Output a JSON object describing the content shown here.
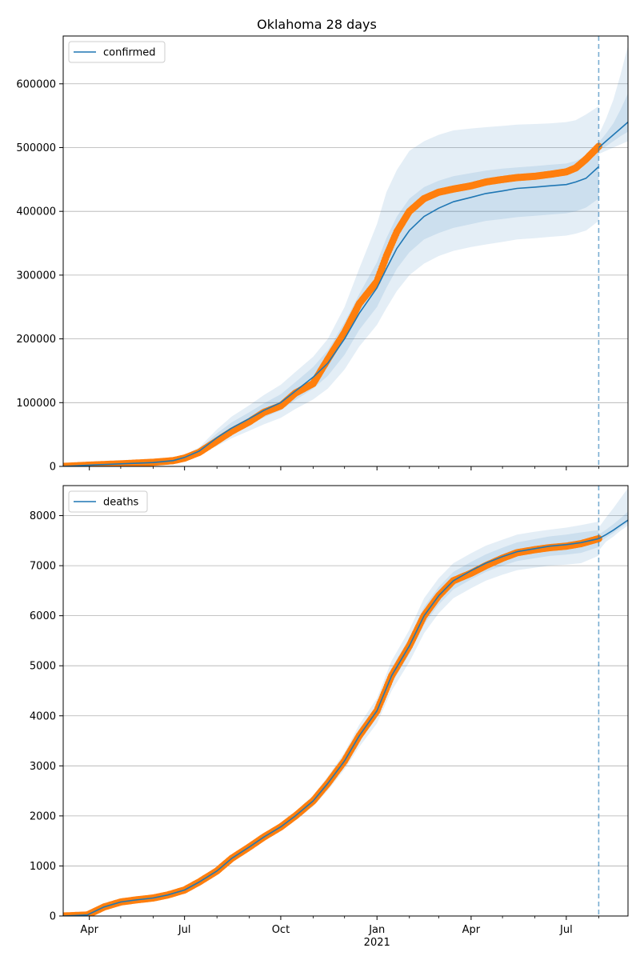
{
  "colors": {
    "model_line": "#1f77b4",
    "band": "#1f77b4",
    "observed": "#ff7f0e",
    "grid": "#b0b0b0",
    "forecast_line": "#1f77b4"
  },
  "chart_data": [
    {
      "type": "line",
      "title": "Oklahoma 28 days",
      "xlabel": "",
      "ylabel": "",
      "legend": {
        "placement": "top-left",
        "entries": [
          "confirmed"
        ]
      },
      "grid": {
        "y": true,
        "x": false
      },
      "xlim": [
        "2020-03-07",
        "2021-08-29"
      ],
      "ylim": [
        0,
        675000
      ],
      "yticks": [
        0,
        100000,
        200000,
        300000,
        400000,
        500000,
        600000
      ],
      "forecast_start": "2021-08-01",
      "series": [
        {
          "name": "confirmed",
          "role": "model_median",
          "x": [
            "2020-03-07",
            "2020-04-01",
            "2020-05-01",
            "2020-06-01",
            "2020-06-20",
            "2020-07-01",
            "2020-07-15",
            "2020-08-01",
            "2020-08-15",
            "2020-09-01",
            "2020-09-15",
            "2020-10-01",
            "2020-10-15",
            "2020-11-01",
            "2020-11-15",
            "2020-12-01",
            "2020-12-15",
            "2021-01-01",
            "2021-01-10",
            "2021-01-20",
            "2021-02-01",
            "2021-02-15",
            "2021-03-01",
            "2021-03-15",
            "2021-04-01",
            "2021-04-15",
            "2021-05-01",
            "2021-05-15",
            "2021-06-01",
            "2021-06-15",
            "2021-07-01",
            "2021-07-10",
            "2021-07-20",
            "2021-08-01"
          ],
          "y": [
            0,
            2000,
            4000,
            6000,
            9000,
            14000,
            24000,
            45000,
            60000,
            75000,
            88000,
            100000,
            118000,
            140000,
            162000,
            200000,
            240000,
            280000,
            310000,
            342000,
            370000,
            392000,
            405000,
            415000,
            422000,
            428000,
            432000,
            436000,
            438000,
            440000,
            442000,
            446000,
            452000,
            470000
          ]
        },
        {
          "name": "",
          "role": "model_forecast",
          "x": [
            "2021-08-01",
            "2021-08-08",
            "2021-08-15",
            "2021-08-22",
            "2021-08-29"
          ],
          "y": [
            500000,
            510000,
            520000,
            530000,
            540000
          ]
        },
        {
          "name": "",
          "role": "observed",
          "x": [
            "2020-03-07",
            "2020-04-01",
            "2020-05-01",
            "2020-06-01",
            "2020-06-20",
            "2020-07-01",
            "2020-07-15",
            "2020-08-01",
            "2020-08-15",
            "2020-09-01",
            "2020-09-15",
            "2020-10-01",
            "2020-10-15",
            "2020-11-01",
            "2020-11-15",
            "2020-12-01",
            "2020-12-15",
            "2021-01-01",
            "2021-01-10",
            "2021-01-20",
            "2021-02-01",
            "2021-02-15",
            "2021-03-01",
            "2021-03-15",
            "2021-04-01",
            "2021-04-15",
            "2021-05-01",
            "2021-05-15",
            "2021-06-01",
            "2021-06-15",
            "2021-07-01",
            "2021-07-10",
            "2021-07-20",
            "2021-08-01"
          ],
          "y": [
            0,
            2000,
            4000,
            6500,
            9000,
            13000,
            22000,
            40000,
            55000,
            70000,
            85000,
            95000,
            115000,
            130000,
            168000,
            210000,
            255000,
            290000,
            330000,
            368000,
            400000,
            420000,
            430000,
            435000,
            440000,
            446000,
            450000,
            453000,
            455000,
            458000,
            462000,
            468000,
            482000,
            502000
          ]
        }
      ],
      "bands": [
        {
          "lower": [
            0,
            1500,
            3000,
            5000,
            7500,
            11000,
            18000,
            32000,
            44000,
            56000,
            66000,
            76000,
            90000,
            105000,
            122000,
            152000,
            188000,
            222000,
            248000,
            275000,
            300000,
            318000,
            330000,
            338000,
            344000,
            348000,
            352000,
            356000,
            358000,
            360000,
            362000,
            365000,
            370000,
            385000
          ],
          "upper": [
            0,
            2500,
            5000,
            7500,
            11000,
            18000,
            30000,
            58000,
            78000,
            96000,
            112000,
            128000,
            148000,
            172000,
            200000,
            250000,
            310000,
            380000,
            430000,
            465000,
            495000,
            510000,
            520000,
            527000,
            530000,
            532000,
            534000,
            536000,
            537000,
            538000,
            540000,
            543000,
            552000,
            565000
          ]
        },
        {
          "lower": [
            0,
            1700,
            3500,
            5500,
            8000,
            12500,
            21000,
            38000,
            52000,
            66000,
            77000,
            88000,
            104000,
            122000,
            142000,
            175000,
            214000,
            250000,
            280000,
            310000,
            336000,
            356000,
            366000,
            374000,
            380000,
            385000,
            388000,
            391000,
            393000,
            395000,
            397000,
            400000,
            406000,
            420000
          ],
          "upper": [
            0,
            2300,
            4500,
            6800,
            10000,
            16000,
            27000,
            52000,
            69000,
            85000,
            99000,
            113000,
            132000,
            156000,
            182000,
            226000,
            270000,
            320000,
            358000,
            392000,
            420000,
            438000,
            448000,
            455000,
            460000,
            464000,
            467000,
            469000,
            471000,
            473000,
            475000,
            479000,
            487000,
            505000
          ]
        }
      ],
      "forecast_bands": [
        {
          "lower": [
            490000,
            495000,
            500000,
            505000,
            510000
          ],
          "upper": [
            520000,
            545000,
            575000,
            615000,
            660000
          ]
        },
        {
          "lower": [
            495000,
            502000,
            510000,
            518000,
            525000
          ],
          "upper": [
            508000,
            522000,
            538000,
            560000,
            585000
          ]
        }
      ]
    },
    {
      "type": "line",
      "title": "",
      "xlabel": "",
      "ylabel": "",
      "legend": {
        "placement": "top-left",
        "entries": [
          "deaths"
        ]
      },
      "grid": {
        "y": true,
        "x": false
      },
      "xlim": [
        "2020-03-07",
        "2021-08-29"
      ],
      "ylim": [
        0,
        8600
      ],
      "yticks": [
        0,
        1000,
        2000,
        3000,
        4000,
        5000,
        6000,
        7000,
        8000
      ],
      "xticks": [
        {
          "date": "2020-04-01",
          "label": "Apr"
        },
        {
          "date": "2020-07-01",
          "label": "Jul"
        },
        {
          "date": "2020-10-01",
          "label": "Oct"
        },
        {
          "date": "2021-01-01",
          "label": "Jan"
        },
        {
          "date": "2021-04-01",
          "label": "Apr"
        },
        {
          "date": "2021-07-01",
          "label": "Jul"
        }
      ],
      "xminor": [
        "2020-05-01",
        "2020-06-01",
        "2020-08-01",
        "2020-09-01",
        "2020-11-01",
        "2020-12-01",
        "2021-02-01",
        "2021-03-01",
        "2021-05-01",
        "2021-06-01",
        "2021-08-01"
      ],
      "year_label": "2021",
      "forecast_start": "2021-08-01",
      "series": [
        {
          "name": "deaths",
          "role": "model_median",
          "x": [
            "2020-03-07",
            "2020-03-30",
            "2020-04-15",
            "2020-05-01",
            "2020-05-15",
            "2020-06-01",
            "2020-06-15",
            "2020-07-01",
            "2020-07-15",
            "2020-08-01",
            "2020-08-15",
            "2020-09-01",
            "2020-09-15",
            "2020-10-01",
            "2020-10-15",
            "2020-11-01",
            "2020-11-15",
            "2020-12-01",
            "2020-12-15",
            "2021-01-01",
            "2021-01-15",
            "2021-02-01",
            "2021-02-15",
            "2021-03-01",
            "2021-03-15",
            "2021-04-01",
            "2021-04-15",
            "2021-05-01",
            "2021-05-15",
            "2021-06-01",
            "2021-06-15",
            "2021-07-01",
            "2021-07-15",
            "2021-08-01"
          ],
          "y": [
            0,
            20,
            180,
            280,
            320,
            360,
            420,
            520,
            680,
            900,
            1150,
            1380,
            1580,
            1780,
            2000,
            2300,
            2650,
            3100,
            3600,
            4100,
            4800,
            5400,
            6000,
            6400,
            6700,
            6900,
            7050,
            7180,
            7280,
            7340,
            7390,
            7420,
            7460,
            7540
          ]
        },
        {
          "name": "",
          "role": "model_forecast",
          "x": [
            "2021-08-01",
            "2021-08-08",
            "2021-08-15",
            "2021-08-22",
            "2021-08-29"
          ],
          "y": [
            7540,
            7620,
            7710,
            7810,
            7910
          ]
        },
        {
          "name": "",
          "role": "observed",
          "x": [
            "2020-03-07",
            "2020-03-30",
            "2020-04-15",
            "2020-05-01",
            "2020-05-15",
            "2020-06-01",
            "2020-06-15",
            "2020-07-01",
            "2020-07-15",
            "2020-08-01",
            "2020-08-15",
            "2020-09-01",
            "2020-09-15",
            "2020-10-01",
            "2020-10-15",
            "2020-11-01",
            "2020-11-15",
            "2020-12-01",
            "2020-12-15",
            "2021-01-01",
            "2021-01-15",
            "2021-02-01",
            "2021-02-15",
            "2021-03-01",
            "2021-03-15",
            "2021-04-01",
            "2021-04-15",
            "2021-05-01",
            "2021-05-15",
            "2021-06-01",
            "2021-06-15",
            "2021-07-01",
            "2021-07-15",
            "2021-08-01"
          ],
          "y": [
            0,
            20,
            180,
            280,
            320,
            360,
            420,
            520,
            680,
            900,
            1150,
            1380,
            1580,
            1780,
            2000,
            2300,
            2650,
            3100,
            3600,
            4100,
            4800,
            5400,
            6000,
            6400,
            6700,
            6850,
            7000,
            7150,
            7260,
            7320,
            7360,
            7390,
            7440,
            7540
          ]
        }
      ],
      "bands": [
        {
          "lower": [
            0,
            15,
            160,
            260,
            300,
            340,
            400,
            495,
            650,
            860,
            1100,
            1320,
            1510,
            1700,
            1910,
            2190,
            2510,
            2930,
            3380,
            3850,
            4500,
            5080,
            5650,
            6050,
            6350,
            6550,
            6700,
            6820,
            6910,
            6960,
            7000,
            7020,
            7050,
            7200
          ],
          "upper": [
            0,
            25,
            200,
            300,
            340,
            380,
            440,
            545,
            710,
            940,
            1200,
            1440,
            1650,
            1860,
            2090,
            2410,
            2790,
            3270,
            3820,
            4350,
            5100,
            5720,
            6350,
            6750,
            7050,
            7250,
            7400,
            7520,
            7620,
            7680,
            7720,
            7760,
            7810,
            7880
          ]
        },
        {
          "lower": [
            0,
            17,
            170,
            270,
            310,
            350,
            410,
            507,
            665,
            880,
            1125,
            1350,
            1545,
            1740,
            1955,
            2245,
            2580,
            3015,
            3490,
            3975,
            4650,
            5240,
            5825,
            6225,
            6525,
            6725,
            6875,
            7000,
            7095,
            7150,
            7195,
            7220,
            7255,
            7370
          ],
          "upper": [
            0,
            23,
            190,
            290,
            330,
            370,
            430,
            533,
            695,
            920,
            1175,
            1410,
            1615,
            1820,
            2045,
            2355,
            2720,
            3185,
            3710,
            4225,
            4950,
            5560,
            6175,
            6575,
            6875,
            7075,
            7225,
            7360,
            7465,
            7530,
            7585,
            7620,
            7665,
            7710
          ]
        }
      ],
      "forecast_bands": [
        {
          "lower": [
            7300,
            7480,
            7580,
            7700,
            7800
          ],
          "upper": [
            7760,
            7960,
            8150,
            8350,
            8550
          ]
        },
        {
          "lower": [
            7450,
            7560,
            7650,
            7760,
            7860
          ],
          "upper": [
            7620,
            7720,
            7830,
            7950,
            8080
          ]
        }
      ]
    }
  ]
}
